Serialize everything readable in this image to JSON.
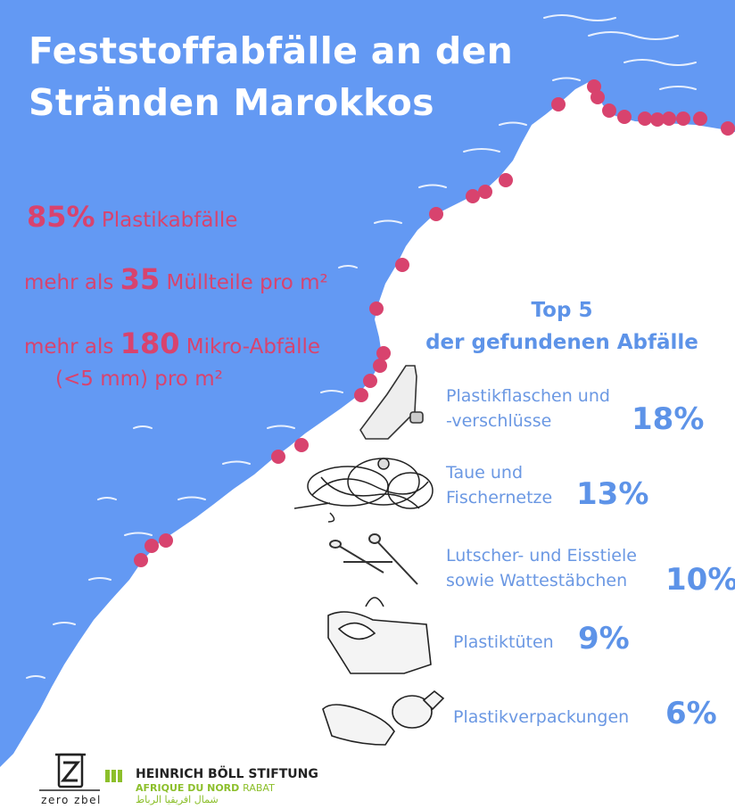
{
  "title": {
    "line1": "Feststoffabfälle an den",
    "line2": "Stränden Marokkos"
  },
  "stats": {
    "plastic": {
      "value": "85%",
      "text": "Plastikabfälle"
    },
    "items_per_m2": {
      "prefix": "mehr als",
      "value": "35",
      "text": "Müllteile pro m²"
    },
    "micro_per_m2": {
      "prefix": "mehr als",
      "value": "180",
      "text": "Mikro-Abfälle",
      "line2": "(<5 mm) pro m²"
    }
  },
  "top5": {
    "title_line1": "Top 5",
    "title_line2": "der gefundenen Abfälle",
    "items": [
      {
        "label_line1": "Plastikflaschen und",
        "label_line2": "-verschlüsse",
        "percent": "18%",
        "icon": "plastic-bottle-icon"
      },
      {
        "label_line1": "Taue und",
        "label_line2": "Fischernetze",
        "percent": "13%",
        "icon": "fishing-net-icon"
      },
      {
        "label_line1": "Lutscher- und Eisstiele",
        "label_line2": "sowie Wattestäbchen",
        "percent": "10%",
        "icon": "cotton-swab-icon"
      },
      {
        "label_line1": "Plastiktüten",
        "label_line2": "",
        "percent": "9%",
        "icon": "plastic-bag-icon"
      },
      {
        "label_line1": "Plastikverpackungen",
        "label_line2": "",
        "percent": "6%",
        "icon": "plastic-packaging-icon"
      }
    ]
  },
  "logos": {
    "zero_zbel": "zero zbel",
    "hbs_line1": "HEINRICH BÖLL STIFTUNG",
    "hbs_line2": "AFRIQUE DU NORD",
    "hbs_line2b": "RABAT",
    "hbs_line3": "شمال افريقيا الرباط"
  },
  "colors": {
    "sea": "#6399f3",
    "land": "#ffffff",
    "dots": "#d8436e",
    "stats_text": "#d8436e",
    "top5_text": "#5d93e8"
  }
}
